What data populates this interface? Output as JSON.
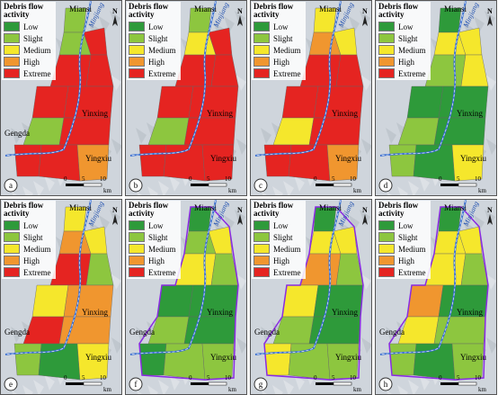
{
  "legend": {
    "title": "Debris flow activity",
    "items": [
      {
        "label": "Low",
        "color": "#2e9a3a"
      },
      {
        "label": "Slight",
        "color": "#8dc63f"
      },
      {
        "label": "Medium",
        "color": "#f5e72c"
      },
      {
        "label": "High",
        "color": "#f0962f"
      },
      {
        "label": "Extreme",
        "color": "#e52421"
      }
    ]
  },
  "places": {
    "miansi": "Miansi",
    "minjiang": "Minjiang",
    "yinxing": "Yinxing",
    "gengda": "Gengda",
    "yingxiu": "Yingxiu"
  },
  "north": "N",
  "scale": {
    "ticks": [
      "0",
      "5",
      "10"
    ],
    "unit": "km"
  },
  "panels": [
    "a",
    "b",
    "c",
    "d",
    "e",
    "f",
    "g",
    "h"
  ]
}
